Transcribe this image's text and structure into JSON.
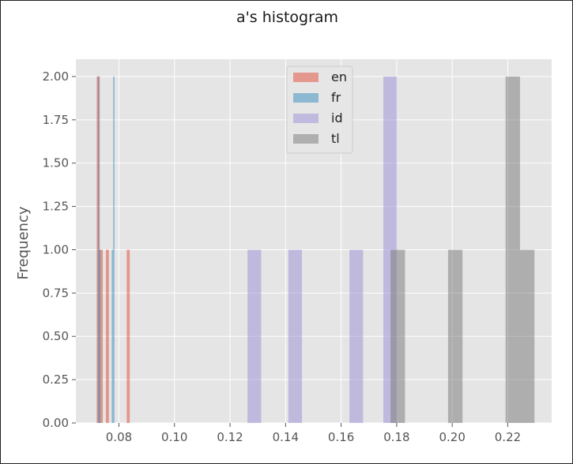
{
  "chart_data": {
    "type": "bar",
    "title": "a's histogram",
    "xlabel": "",
    "ylabel": "Frequency",
    "xlim": [
      0.0645,
      0.2358
    ],
    "ylim": [
      0,
      2.1
    ],
    "x_ticks": [
      "0.08",
      "0.10",
      "0.12",
      "0.14",
      "0.16",
      "0.18",
      "0.20",
      "0.22"
    ],
    "x_tick_values": [
      0.08,
      0.1,
      0.12,
      0.14,
      0.16,
      0.18,
      0.2,
      0.22
    ],
    "y_ticks": [
      "0.00",
      "0.25",
      "0.50",
      "0.75",
      "1.00",
      "1.25",
      "1.50",
      "1.75",
      "2.00"
    ],
    "y_tick_values": [
      0,
      0.25,
      0.5,
      0.75,
      1.0,
      1.25,
      1.5,
      1.75,
      2.0
    ],
    "grid": true,
    "legend_position": "top-center",
    "series": [
      {
        "name": "en",
        "color": "#E24A33",
        "bins": [
          {
            "x0": 0.072,
            "x1": 0.0731,
            "count": 2
          },
          {
            "x0": 0.0731,
            "x1": 0.0742,
            "count": 1
          },
          {
            "x0": 0.0753,
            "x1": 0.0764,
            "count": 1
          },
          {
            "x0": 0.0828,
            "x1": 0.0839,
            "count": 1
          }
        ]
      },
      {
        "name": "fr",
        "color": "#348ABD",
        "bins": [
          {
            "x0": 0.0724,
            "x1": 0.0729,
            "count": 2
          },
          {
            "x0": 0.0729,
            "x1": 0.0734,
            "count": 1
          },
          {
            "x0": 0.0774,
            "x1": 0.0779,
            "count": 1
          },
          {
            "x0": 0.0779,
            "x1": 0.0784,
            "count": 2
          }
        ]
      },
      {
        "name": "id",
        "color": "#988ED5",
        "bins": [
          {
            "x0": 0.1263,
            "x1": 0.1312,
            "count": 1
          },
          {
            "x0": 0.141,
            "x1": 0.1459,
            "count": 1
          },
          {
            "x0": 0.163,
            "x1": 0.1679,
            "count": 1
          },
          {
            "x0": 0.1752,
            "x1": 0.1801,
            "count": 2
          }
        ]
      },
      {
        "name": "tl",
        "color": "#777777",
        "bins": [
          {
            "x0": 0.1778,
            "x1": 0.183,
            "count": 1
          },
          {
            "x0": 0.1985,
            "x1": 0.2037,
            "count": 1
          },
          {
            "x0": 0.2192,
            "x1": 0.2244,
            "count": 2
          },
          {
            "x0": 0.2244,
            "x1": 0.2296,
            "count": 1
          }
        ]
      }
    ]
  },
  "style": {
    "plot_background": "#E5E5E5",
    "grid_color": "#FFFFFF",
    "bar_opacity": 0.5
  }
}
